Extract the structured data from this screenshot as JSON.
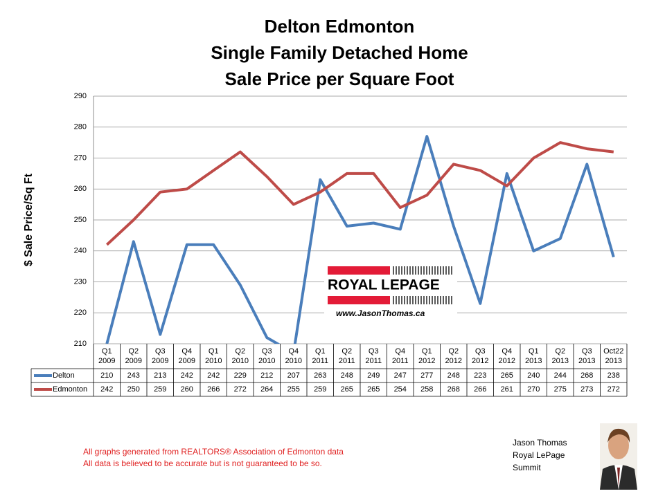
{
  "chart_data": {
    "type": "line",
    "title": [
      "Delton Edmonton",
      "Single Family Detached Home",
      "Sale Price per Square Foot"
    ],
    "y_label": "$ Sale Price/Sq Ft",
    "categories": [
      "Q1 2009",
      "Q2 2009",
      "Q3 2009",
      "Q4 2009",
      "Q1 2010",
      "Q2 2010",
      "Q3 2010",
      "Q4 2010",
      "Q1 2011",
      "Q2 2011",
      "Q3 2011",
      "Q4 2011",
      "Q1 2012",
      "Q2 2012",
      "Q3 2012",
      "Q4 2012",
      "Q1 2013",
      "Q2 2013",
      "Q3 2013",
      "Oct22 2013"
    ],
    "series": [
      {
        "name": "Delton",
        "color": "#4a7ebb",
        "values": [
          210,
          243,
          213,
          242,
          242,
          229,
          212,
          207,
          263,
          248,
          249,
          247,
          277,
          248,
          223,
          265,
          240,
          244,
          268,
          238
        ]
      },
      {
        "name": "Edmonton",
        "color": "#be4b48",
        "values": [
          242,
          250,
          259,
          260,
          266,
          272,
          264,
          255,
          259,
          265,
          265,
          254,
          258,
          268,
          266,
          261,
          270,
          275,
          273,
          272
        ]
      }
    ],
    "ylim": [
      210,
      290
    ],
    "yticks": [
      210,
      220,
      230,
      240,
      250,
      260,
      270,
      280,
      290
    ],
    "grid": true,
    "footnotes": [
      "All graphs generated from REALTORS® Association of Edmonton data",
      "All data is believed to be accurate but is not guaranteed to be so."
    ],
    "author": [
      "Jason Thomas",
      "Royal LePage",
      "Summit"
    ],
    "logo": {
      "brand": "ROYAL LEPAGE",
      "url": "www.JasonThomas.ca"
    }
  }
}
